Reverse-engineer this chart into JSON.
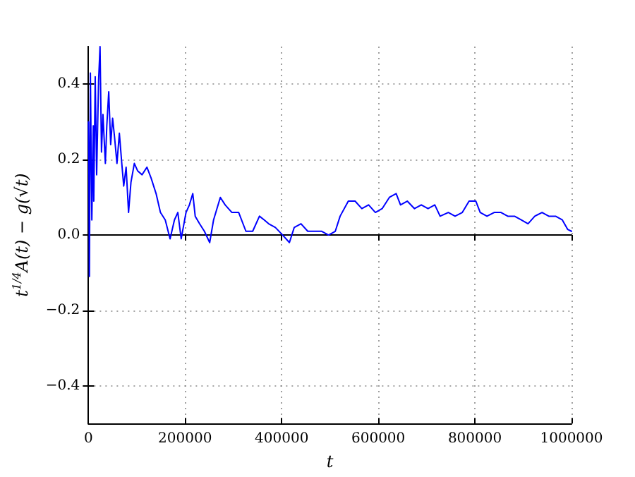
{
  "chart_data": {
    "type": "line",
    "xlabel": "t",
    "ylabel": "t$^{1/4}$A(t) − g(√t)",
    "xlim": [
      0,
      1000000
    ],
    "xticks": [
      0,
      200000,
      400000,
      600000,
      800000,
      1000000
    ],
    "ylim": [
      -0.5,
      0.5
    ],
    "yticks": [
      {
        "value": -0.4,
        "label": "−0.4"
      },
      {
        "value": -0.2,
        "label": "−0.2"
      },
      {
        "value": 0,
        "label": "0.0"
      },
      0.2,
      0.4
    ],
    "grid": true,
    "marker": "none",
    "line_style": "solid",
    "series": [
      {
        "color": "#0000ff",
        "x": [
          0,
          1000,
          2000,
          4000,
          7000,
          10000,
          11000,
          14000,
          17000,
          21000,
          24000,
          27000,
          30000,
          35000,
          38000,
          42000,
          46000,
          50000,
          54000,
          59000,
          64000,
          69000,
          73000,
          78000,
          83000,
          88000,
          95000,
          102000,
          111000,
          121000,
          130000,
          140000,
          149000,
          159000,
          169000,
          178000,
          185000,
          192000,
          202000,
          209000,
          216000,
          221000,
          230000,
          240000,
          251000,
          259000,
          273000,
          283000,
          297000,
          311000,
          326000,
          340000,
          354000,
          364000,
          373000,
          387000,
          402000,
          416000,
          426000,
          440000,
          454000,
          468000,
          483000,
          497000,
          511000,
          521000,
          538000,
          552000,
          566000,
          580000,
          594000,
          608000,
          623000,
          637000,
          646000,
          660000,
          675000,
          689000,
          703000,
          717000,
          728000,
          745000,
          759000,
          774000,
          788000,
          802000,
          811000,
          825000,
          840000,
          854000,
          868000,
          882000,
          896000,
          910000,
          924000,
          939000,
          953000,
          967000,
          981000,
          992000,
          1000000
        ],
        "values": [
          0.3,
          0.16,
          -0.11,
          0.43,
          0.04,
          0.29,
          0.09,
          0.42,
          0.16,
          0.41,
          0.5,
          0.22,
          0.32,
          0.19,
          0.29,
          0.38,
          0.24,
          0.31,
          0.26,
          0.19,
          0.27,
          0.19,
          0.13,
          0.18,
          0.06,
          0.14,
          0.19,
          0.17,
          0.16,
          0.18,
          0.15,
          0.11,
          0.06,
          0.04,
          -0.01,
          0.04,
          0.06,
          -0.01,
          0.06,
          0.08,
          0.11,
          0.05,
          0.03,
          0.01,
          -0.02,
          0.04,
          0.1,
          0.08,
          0.06,
          0.06,
          0.01,
          0.01,
          0.05,
          0.04,
          0.03,
          0.02,
          0.0,
          -0.02,
          0.02,
          0.03,
          0.01,
          0.01,
          0.01,
          0.0,
          0.01,
          0.05,
          0.09,
          0.09,
          0.07,
          0.08,
          0.06,
          0.07,
          0.1,
          0.11,
          0.08,
          0.09,
          0.07,
          0.08,
          0.07,
          0.08,
          0.05,
          0.06,
          0.05,
          0.06,
          0.09,
          0.09,
          0.06,
          0.05,
          0.06,
          0.06,
          0.05,
          0.05,
          0.04,
          0.03,
          0.05,
          0.06,
          0.05,
          0.05,
          0.04,
          0.015,
          0.01
        ]
      }
    ]
  }
}
